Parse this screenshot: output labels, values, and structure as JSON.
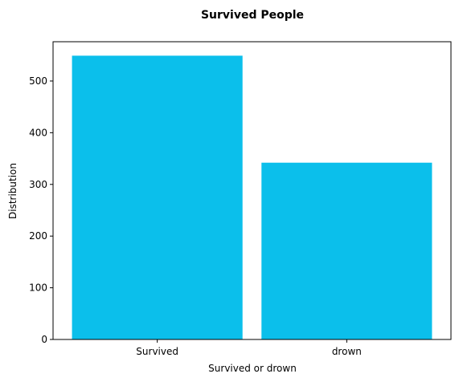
{
  "chart_data": {
    "type": "bar",
    "title": "Survived People",
    "xlabel": "Survived or drown",
    "ylabel": "Distribution",
    "categories": [
      "Survived",
      "drown"
    ],
    "values": [
      549,
      342
    ],
    "ylim": [
      0,
      576
    ],
    "yticks": [
      0,
      100,
      200,
      300,
      400,
      500
    ],
    "bar_color": "#0bbfeb",
    "grid": false,
    "legend": "none"
  }
}
